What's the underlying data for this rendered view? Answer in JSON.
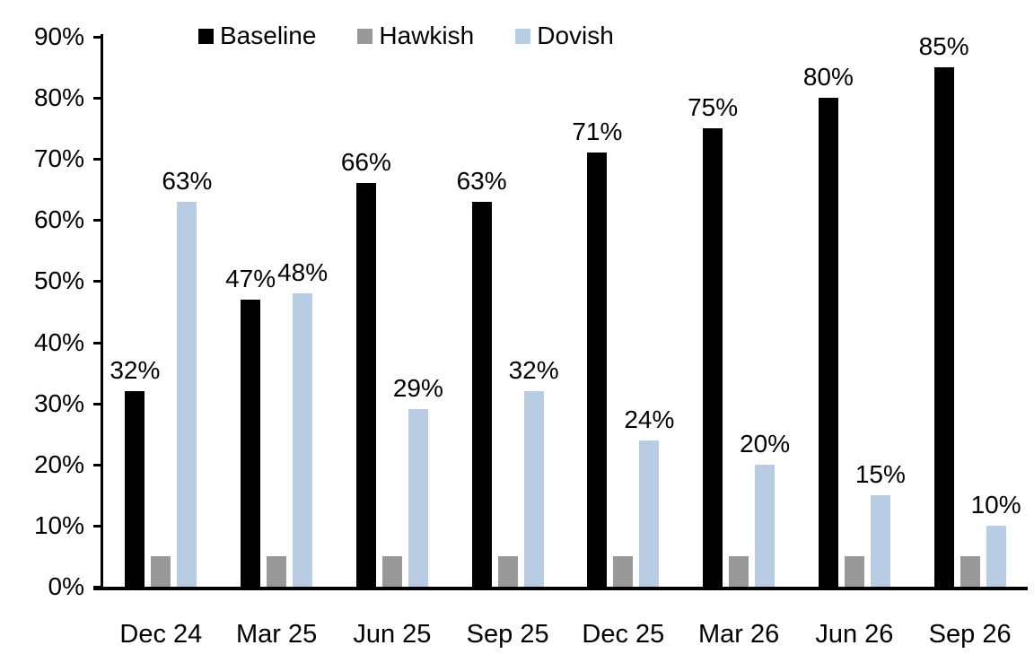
{
  "chart_data": {
    "type": "bar",
    "title": "",
    "xlabel": "",
    "ylabel": "",
    "categories": [
      "Dec 24",
      "Mar 25",
      "Jun 25",
      "Sep 25",
      "Dec 25",
      "Mar 26",
      "Jun 26",
      "Sep 26"
    ],
    "series": [
      {
        "name": "Baseline",
        "color": "#000000",
        "values": [
          32,
          47,
          66,
          63,
          71,
          75,
          80,
          85
        ],
        "labels_shown": true,
        "data_labels": [
          "32%",
          "47%",
          "66%",
          "63%",
          "71%",
          "75%",
          "80%",
          "85%"
        ]
      },
      {
        "name": "Hawkish",
        "color": "#999999",
        "values": [
          5,
          5,
          5,
          5,
          5,
          5,
          5,
          5
        ],
        "labels_shown": false,
        "data_labels": []
      },
      {
        "name": "Dovish",
        "color": "#B8CCE4",
        "values": [
          63,
          48,
          29,
          32,
          24,
          20,
          15,
          10
        ],
        "labels_shown": true,
        "data_labels": [
          "63%",
          "48%",
          "29%",
          "32%",
          "24%",
          "20%",
          "15%",
          "10%"
        ]
      }
    ],
    "ylim": [
      0,
      90
    ],
    "yticks": [
      {
        "value": 0,
        "label": "0%"
      },
      {
        "value": 10,
        "label": "10%"
      },
      {
        "value": 20,
        "label": "20%"
      },
      {
        "value": 30,
        "label": "30%"
      },
      {
        "value": 40,
        "label": "40%"
      },
      {
        "value": 50,
        "label": "50%"
      },
      {
        "value": 60,
        "label": "60%"
      },
      {
        "value": 70,
        "label": "70%"
      },
      {
        "value": 80,
        "label": "80%"
      },
      {
        "value": 90,
        "label": "90%"
      }
    ],
    "grid": false,
    "legend_position": "top"
  }
}
